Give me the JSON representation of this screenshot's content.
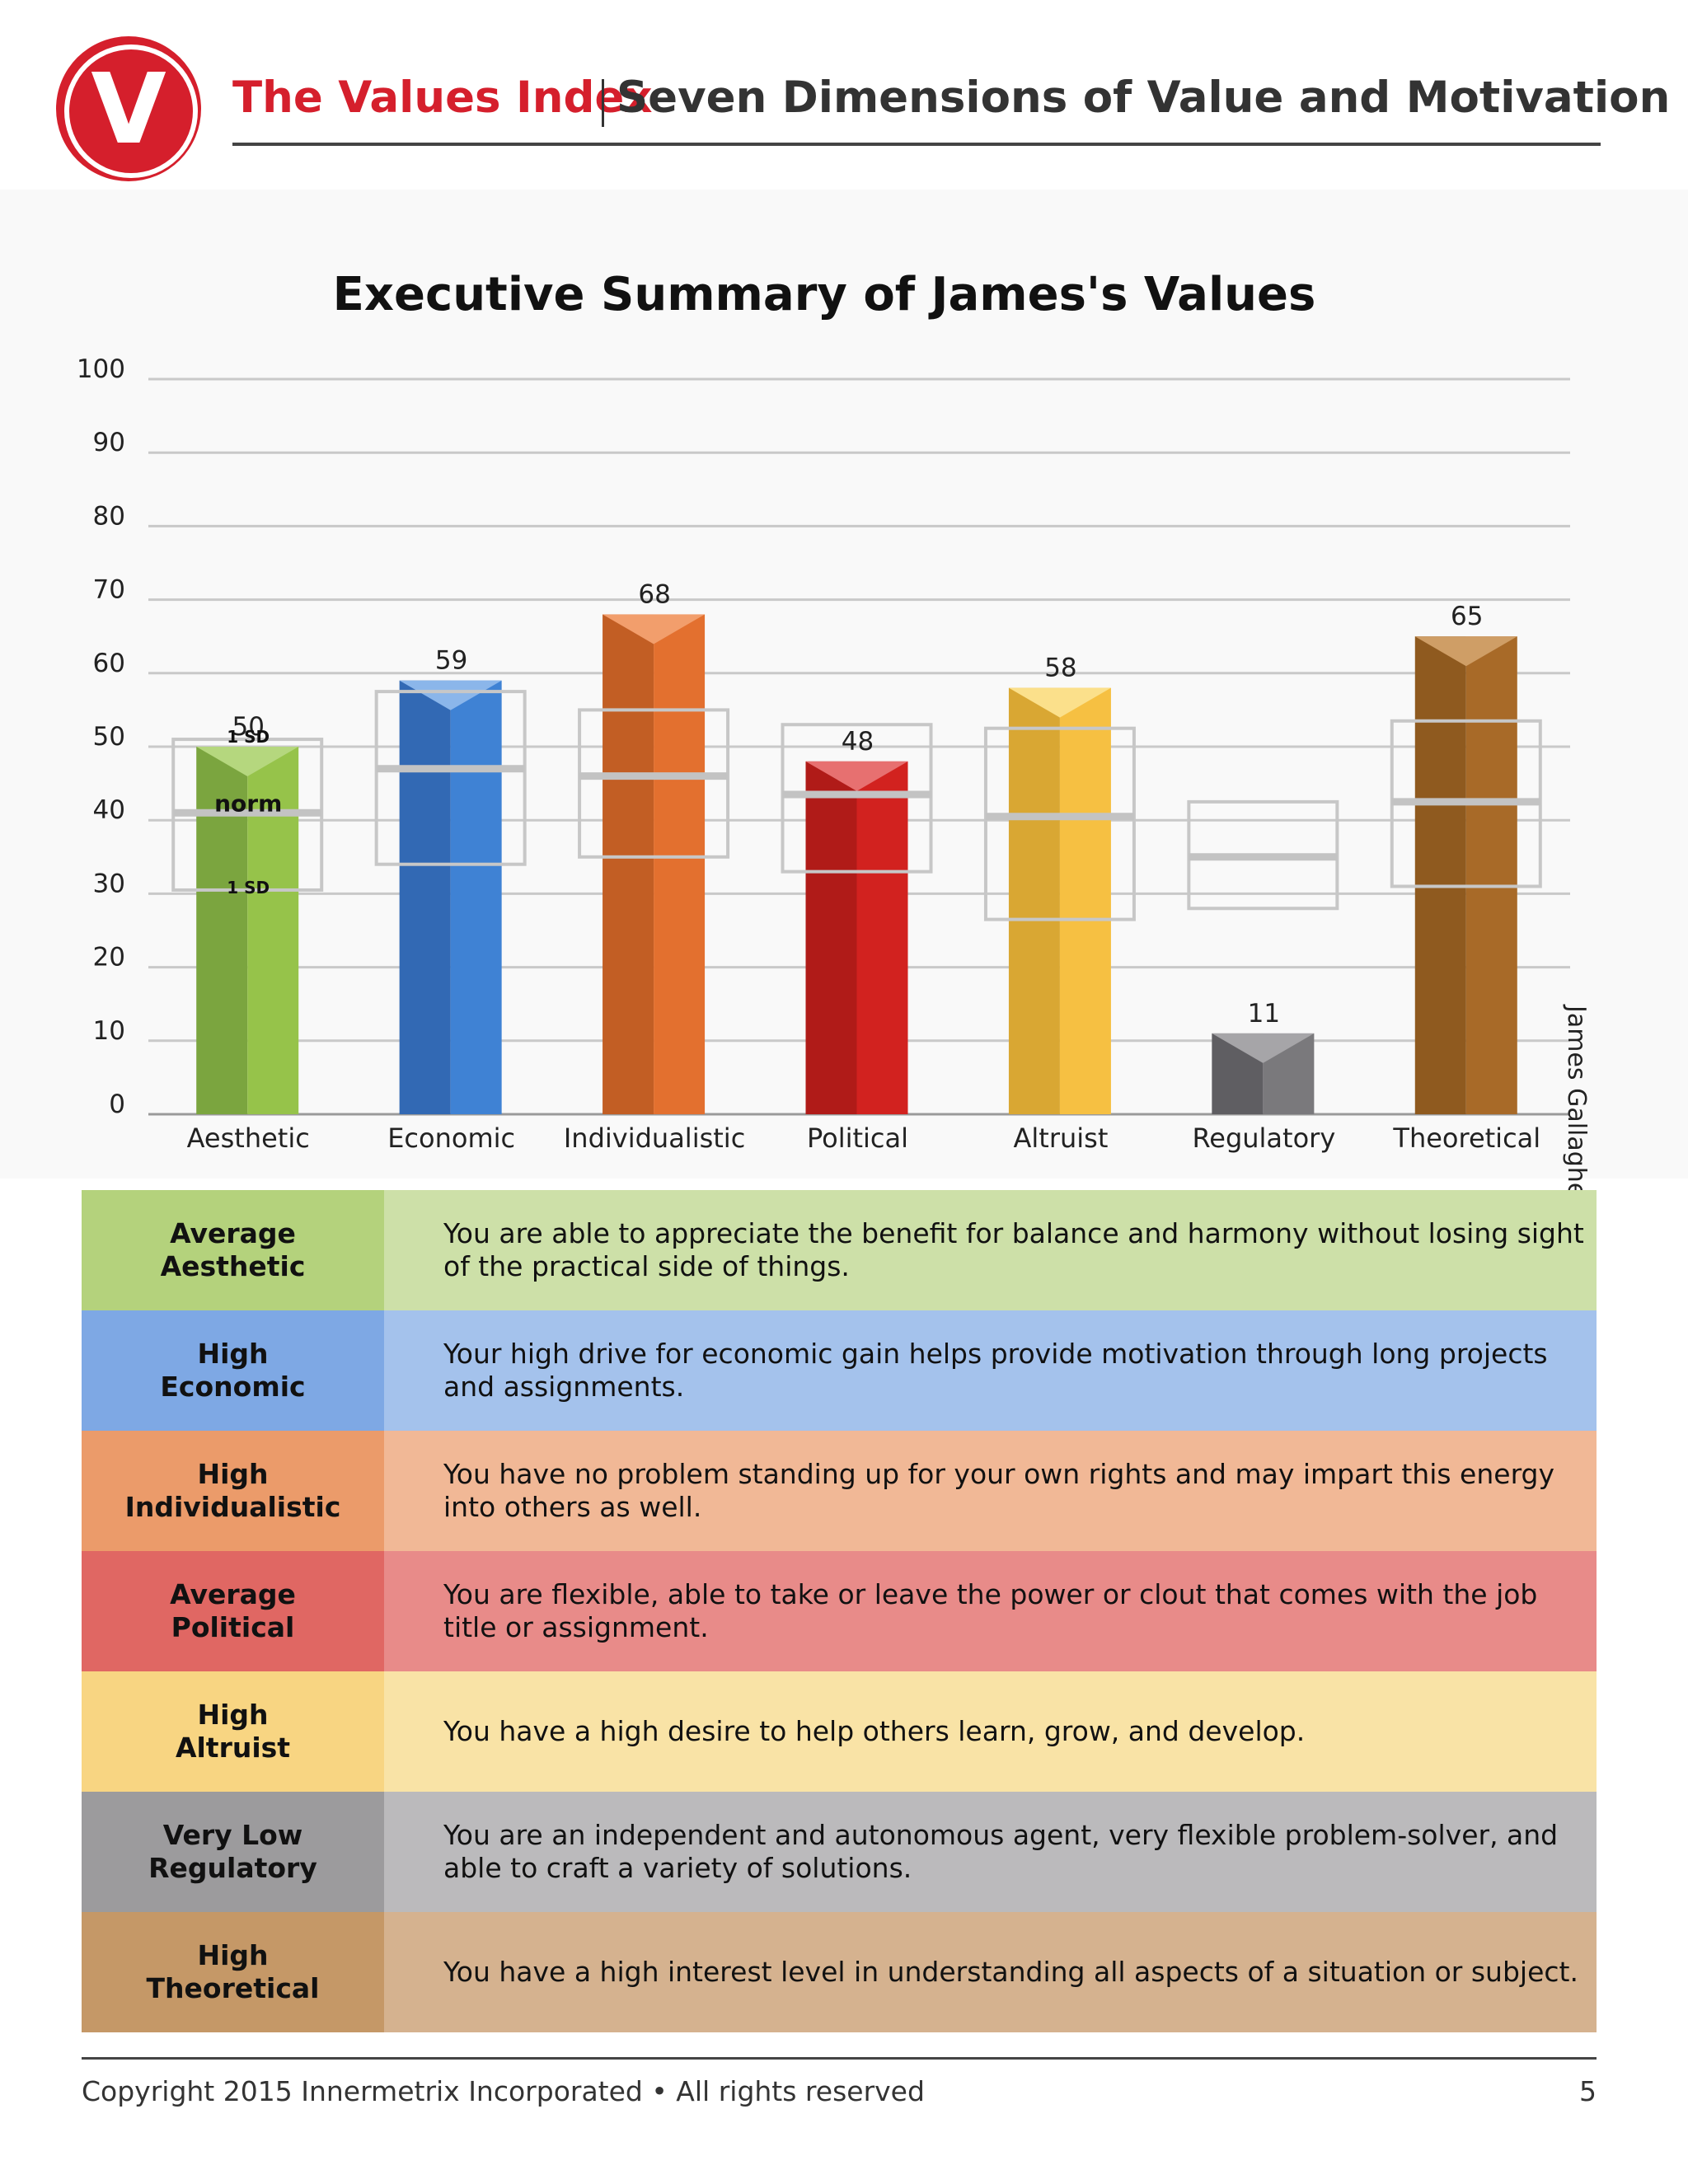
{
  "header": {
    "logo_letter": "V",
    "brand": "The Values Index",
    "tagline": "Seven Dimensions of Value and Motivation"
  },
  "side_label": "James Gallagher",
  "chart_data": {
    "type": "bar",
    "title": "Executive Summary of James's Values",
    "xlabel": "",
    "ylabel": "",
    "ylim": [
      0,
      100
    ],
    "yticks": [
      0,
      10,
      20,
      30,
      40,
      50,
      60,
      70,
      80,
      90,
      100
    ],
    "grid": true,
    "categories": [
      "Aesthetic",
      "Economic",
      "Individualistic",
      "Political",
      "Altruist",
      "Regulatory",
      "Theoretical"
    ],
    "values": [
      50,
      59,
      68,
      48,
      58,
      11,
      65
    ],
    "norm": [
      41,
      47,
      46,
      43.5,
      40.5,
      35,
      42.5
    ],
    "sd_upper": [
      51,
      57.5,
      55,
      53,
      52.5,
      42.5,
      53.5
    ],
    "sd_lower": [
      30.5,
      34,
      35,
      33,
      26.5,
      28,
      31
    ],
    "colors": [
      "#96c34a",
      "#3f82d4",
      "#e3702f",
      "#d2221f",
      "#f6c042",
      "#7a797c",
      "#a86a28"
    ],
    "shade_colors": [
      "#7ba53f",
      "#3269b4",
      "#c25e24",
      "#b01b18",
      "#d9a733",
      "#5f5e62",
      "#8f5a1f"
    ],
    "cap_colors": [
      "#b5d77e",
      "#8bb6ea",
      "#f29e6c",
      "#e77070",
      "#fbe08b",
      "#a6a5a8",
      "#cf9e66"
    ],
    "legend_labels": {
      "upper": "1 SD",
      "norm": "norm",
      "lower": "1 SD"
    }
  },
  "descriptions": [
    {
      "level": "Average\nAesthetic",
      "text": "You are able to appreciate the benefit for balance and harmony without losing sight of the practical side of things.",
      "dark": "#b4d27c",
      "light": "#cde0a8"
    },
    {
      "level": "High\nEconomic",
      "text": "Your high drive for economic gain helps provide motivation through long projects and assignments.",
      "dark": "#7ea8e4",
      "light": "#a4c2ec"
    },
    {
      "level": "High\nIndividualistic",
      "text": "You have no problem standing up for your own rights and may impart this energy into others as well.",
      "dark": "#eb9b6a",
      "light": "#f1b896"
    },
    {
      "level": "Average\nPolitical",
      "text": "You are flexible, able to take or leave the power or clout that comes with the job title or assignment.",
      "dark": "#e06763",
      "light": "#e88b89"
    },
    {
      "level": "High\nAltruist",
      "text": "You have a high desire to help others learn, grow, and develop.",
      "dark": "#f8d582",
      "light": "#f9e3a6"
    },
    {
      "level": "Very Low\nRegulatory",
      "text": "You are an independent and autonomous agent, very flexible problem-solver, and able to craft a variety of solutions.",
      "dark": "#9c9b9d",
      "light": "#bbbabc"
    },
    {
      "level": "High\nTheoretical",
      "text": "You have a high interest level in understanding all aspects of a situation or subject.",
      "dark": "#c59867",
      "light": "#d5b28f"
    }
  ],
  "footer": {
    "copyright": "Copyright 2015 Innermetrix Incorporated • All rights reserved",
    "page": "5"
  }
}
